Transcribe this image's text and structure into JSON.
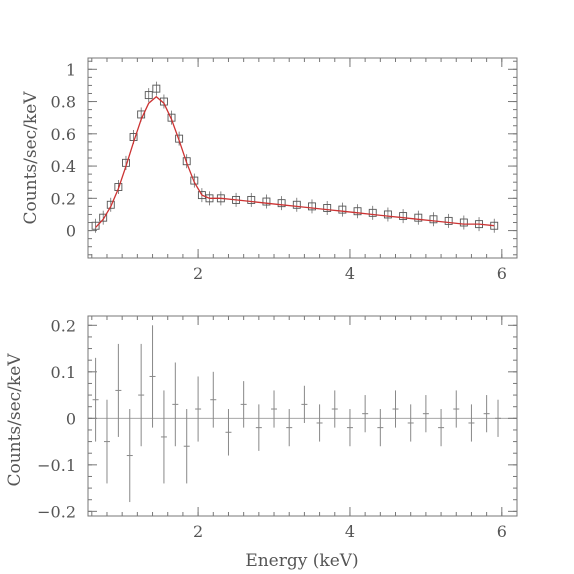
{
  "chart_data": [
    {
      "type": "scatter",
      "title": "",
      "xlabel": "",
      "ylabel": "Counts/sec/keV",
      "xlim": [
        0.55,
        6.2
      ],
      "ylim": [
        -0.17,
        1.07
      ],
      "xticks": [
        2,
        4,
        6
      ],
      "xtick_labels": [
        "2",
        "4",
        "6"
      ],
      "yticks": [
        0,
        0.2,
        0.4,
        0.6,
        0.8,
        1
      ],
      "ytick_labels": [
        "0",
        "0.2",
        "0.4",
        "0.6",
        "0.8",
        "1"
      ],
      "grid": false,
      "marker": "open-square",
      "series": [
        {
          "kind": "data",
          "color": "#555555",
          "x": [
            0.65,
            0.75,
            0.85,
            0.95,
            1.05,
            1.15,
            1.25,
            1.35,
            1.45,
            1.55,
            1.65,
            1.75,
            1.85,
            1.95,
            2.05,
            2.15,
            2.3,
            2.5,
            2.7,
            2.9,
            3.1,
            3.3,
            3.5,
            3.7,
            3.9,
            4.1,
            4.3,
            4.5,
            4.7,
            4.9,
            5.1,
            5.3,
            5.5,
            5.7,
            5.9
          ],
          "y": [
            0.03,
            0.08,
            0.16,
            0.27,
            0.42,
            0.58,
            0.72,
            0.84,
            0.88,
            0.8,
            0.7,
            0.57,
            0.43,
            0.31,
            0.22,
            0.2,
            0.2,
            0.19,
            0.19,
            0.18,
            0.17,
            0.16,
            0.15,
            0.14,
            0.13,
            0.12,
            0.11,
            0.1,
            0.09,
            0.08,
            0.07,
            0.06,
            0.05,
            0.04,
            0.03
          ]
        },
        {
          "kind": "model",
          "color": "#cc3333",
          "x": [
            0.65,
            0.75,
            0.85,
            0.95,
            1.05,
            1.15,
            1.25,
            1.35,
            1.45,
            1.55,
            1.65,
            1.75,
            1.85,
            1.95,
            2.05,
            2.15,
            2.3,
            2.5,
            2.7,
            2.9,
            3.1,
            3.3,
            3.5,
            3.7,
            3.9,
            4.1,
            4.3,
            4.5,
            4.7,
            4.9,
            5.1,
            5.3,
            5.5,
            5.7,
            5.9
          ],
          "y": [
            0.02,
            0.07,
            0.15,
            0.26,
            0.4,
            0.55,
            0.69,
            0.79,
            0.83,
            0.79,
            0.69,
            0.56,
            0.42,
            0.3,
            0.22,
            0.2,
            0.2,
            0.19,
            0.18,
            0.17,
            0.16,
            0.15,
            0.14,
            0.13,
            0.12,
            0.11,
            0.1,
            0.09,
            0.08,
            0.07,
            0.06,
            0.05,
            0.04,
            0.04,
            0.03
          ]
        }
      ]
    },
    {
      "type": "scatter",
      "title": "",
      "xlabel": "Energy (keV)",
      "ylabel": "Counts/sec/keV",
      "xlim": [
        0.55,
        6.2
      ],
      "ylim": [
        -0.21,
        0.22
      ],
      "xticks": [
        2,
        4,
        6
      ],
      "xtick_labels": [
        "2",
        "4",
        "6"
      ],
      "yticks": [
        -0.2,
        -0.1,
        0,
        0.1,
        0.2
      ],
      "ytick_labels": [
        "−0.2",
        "−0.1",
        "0",
        "0.1",
        "0.2"
      ],
      "grid": false,
      "marker": "error-bar",
      "zero_line": true,
      "series": [
        {
          "kind": "residuals",
          "color": "#888888",
          "x": [
            0.65,
            0.8,
            0.95,
            1.1,
            1.25,
            1.4,
            1.55,
            1.7,
            1.85,
            2.0,
            2.2,
            2.4,
            2.6,
            2.8,
            3.0,
            3.2,
            3.4,
            3.6,
            3.8,
            4.0,
            4.2,
            4.4,
            4.6,
            4.8,
            5.0,
            5.2,
            5.4,
            5.6,
            5.8,
            5.95
          ],
          "y": [
            0.04,
            -0.05,
            0.06,
            -0.08,
            0.05,
            0.09,
            -0.04,
            0.03,
            -0.06,
            0.02,
            0.04,
            -0.03,
            0.03,
            -0.02,
            0.02,
            -0.02,
            0.03,
            -0.01,
            0.02,
            -0.02,
            0.01,
            -0.02,
            0.02,
            -0.01,
            0.01,
            -0.02,
            0.02,
            -0.01,
            0.01,
            0.0
          ],
          "err": [
            0.09,
            0.09,
            0.1,
            0.1,
            0.11,
            0.11,
            0.1,
            0.09,
            0.08,
            0.07,
            0.06,
            0.05,
            0.05,
            0.05,
            0.04,
            0.04,
            0.04,
            0.04,
            0.04,
            0.04,
            0.04,
            0.04,
            0.04,
            0.04,
            0.04,
            0.04,
            0.04,
            0.04,
            0.04,
            0.04
          ]
        }
      ]
    }
  ]
}
